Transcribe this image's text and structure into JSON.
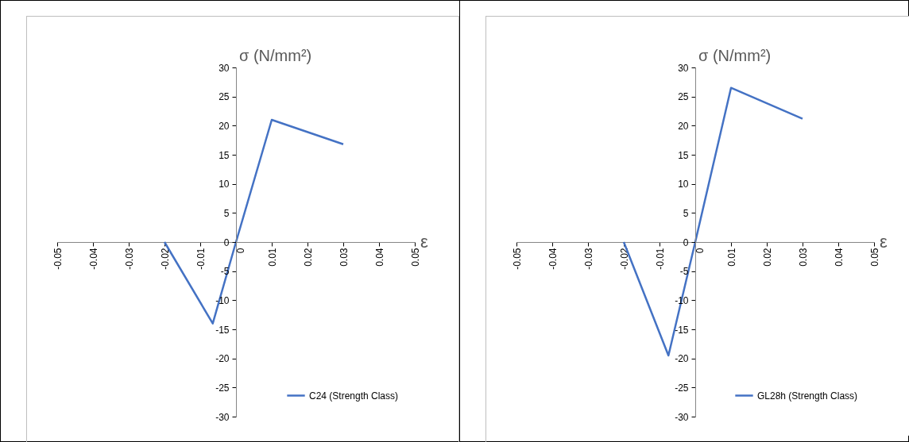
{
  "chart_data": [
    {
      "type": "line",
      "xlabel": "ε",
      "ylabel": "σ (N/mm²)",
      "x": [
        -0.02,
        -0.0065,
        0,
        0.01,
        0.03
      ],
      "series": [
        {
          "name": "C24 (Strength Class)",
          "color": "#4472c4",
          "values": [
            0,
            -14,
            0,
            21,
            16.8
          ]
        }
      ],
      "xlim": [
        -0.05,
        0.05
      ],
      "xticks": [
        -0.05,
        -0.04,
        -0.03,
        -0.02,
        -0.01,
        0,
        0.01,
        0.02,
        0.03,
        0.04,
        0.05
      ],
      "ylim": [
        -30,
        30
      ],
      "yticks": [
        -30,
        -25,
        -20,
        -15,
        -10,
        -5,
        0,
        5,
        10,
        15,
        20,
        25,
        30
      ],
      "legend": "bottom right"
    },
    {
      "type": "line",
      "xlabel": "ε",
      "ylabel": "σ (N/mm²)",
      "x": [
        -0.02,
        -0.0075,
        0,
        0.01,
        0.03
      ],
      "series": [
        {
          "name": "GL28h (Strength Class)",
          "color": "#4472c4",
          "values": [
            0,
            -19.5,
            0,
            26.5,
            21.2
          ]
        }
      ],
      "xlim": [
        -0.05,
        0.05
      ],
      "xticks": [
        -0.05,
        -0.04,
        -0.03,
        -0.02,
        -0.01,
        0,
        0.01,
        0.02,
        0.03,
        0.04,
        0.05
      ],
      "ylim": [
        -30,
        30
      ],
      "yticks": [
        -30,
        -25,
        -20,
        -15,
        -10,
        -5,
        0,
        5,
        10,
        15,
        20,
        25,
        30
      ],
      "legend": "bottom right"
    }
  ]
}
